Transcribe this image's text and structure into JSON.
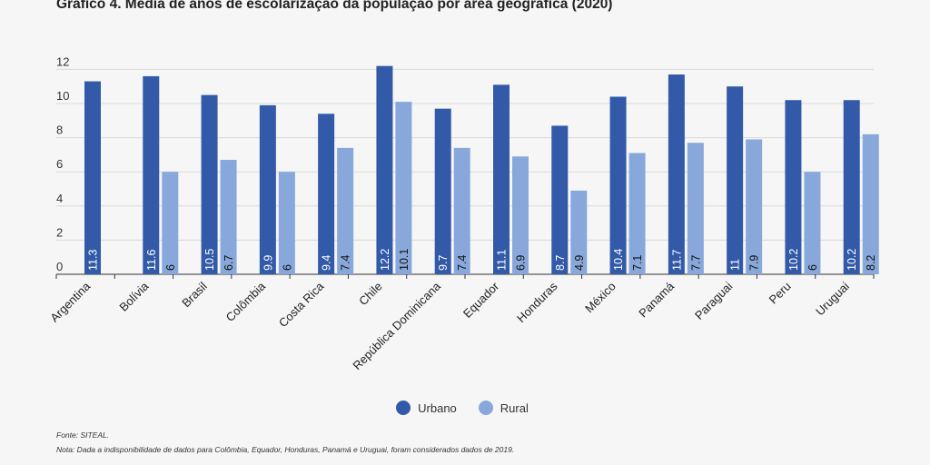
{
  "chart_data": {
    "type": "bar",
    "title": "Gráfico 4. Média de anos de escolarização da população por área geográfica (2020)",
    "categories": [
      "Argentina",
      "Bolívia",
      "Brasil",
      "Colômbia",
      "Costa Rica",
      "Chile",
      "República Dominicana",
      "Equador",
      "Honduras",
      "México",
      "Panamá",
      "Paraguai",
      "Peru",
      "Uruguai"
    ],
    "series": [
      {
        "name": "Urbano",
        "color": "#325aa8",
        "values": [
          11.3,
          11.6,
          10.5,
          9.9,
          9.4,
          12.2,
          9.7,
          11.1,
          8.7,
          10.4,
          11.7,
          11,
          10.2,
          10.2
        ]
      },
      {
        "name": "Rural",
        "color": "#88a8db",
        "values": [
          null,
          6,
          6.7,
          6,
          7.4,
          10.1,
          7.4,
          6.9,
          4.9,
          7.1,
          7.7,
          7.9,
          6,
          8.2
        ]
      }
    ],
    "yticks": [
      0,
      2,
      4,
      6,
      8,
      10,
      12
    ],
    "ylim": [
      0,
      12.5
    ],
    "xlabel": "",
    "ylabel": "",
    "grid": true,
    "legend": "bottom-center"
  },
  "footer": {
    "source": "Fonte: SITEAL.",
    "note": "Nota: Dada a indisponibilidade de dados para Colômbia, Equador, Honduras, Panamá e Uruguai, foram considerados dados de 2019."
  }
}
